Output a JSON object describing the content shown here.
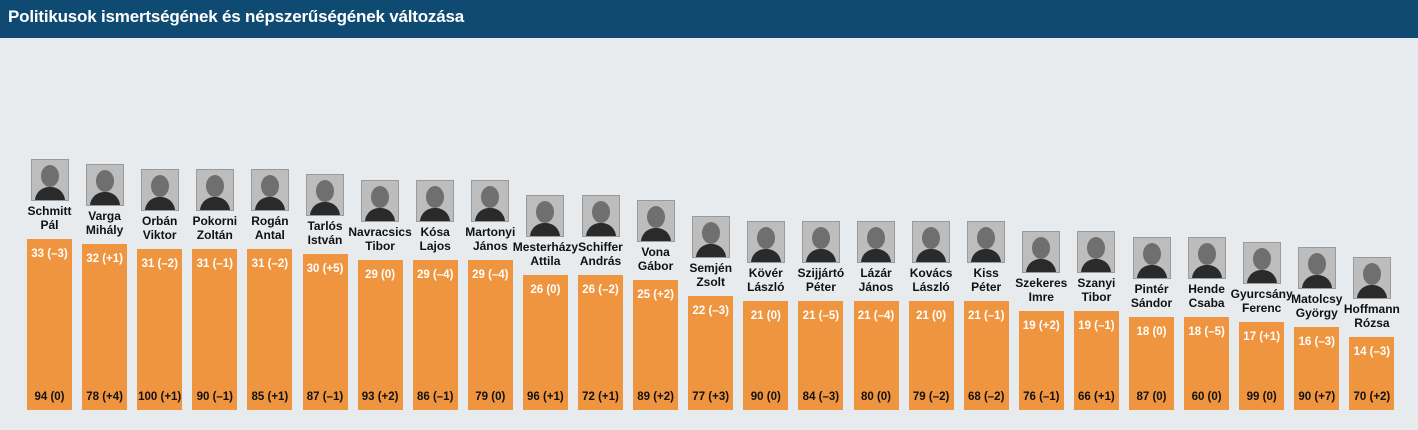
{
  "header": {
    "title": "Politikusok ismertségének és népszerűségének változása"
  },
  "chart_data": {
    "type": "bar",
    "title": "Politikusok ismertségének és népszerűségének változása",
    "xlabel": "",
    "ylabel": "",
    "ylim": [
      0,
      40
    ],
    "categories": [
      "Schmitt Pál",
      "Varga Mihály",
      "Orbán Viktor",
      "Pokorni Zoltán",
      "Rogán Antal",
      "Tarlós István",
      "Navracsics Tibor",
      "Kósa Lajos",
      "Martonyi János",
      "Mesterházy Attila",
      "Schiffer András",
      "Vona Gábor",
      "Semjén Zsolt",
      "Kövér László",
      "Szijjártó Péter",
      "Lázár János",
      "Kovács László",
      "Kiss Péter",
      "Szekeres Imre",
      "Szanyi Tibor",
      "Pintér Sándor",
      "Hende Csaba",
      "Gyurcsány Ferenc",
      "Matolcsy György",
      "Hoffmann Rózsa"
    ],
    "name_lines": [
      [
        "Schmitt",
        "Pál"
      ],
      [
        "Varga",
        "Mihály"
      ],
      [
        "Orbán",
        "Viktor"
      ],
      [
        "Pokorni",
        "Zoltán"
      ],
      [
        "Rogán",
        "Antal"
      ],
      [
        "Tarlós",
        "István"
      ],
      [
        "Navracsics",
        "Tibor"
      ],
      [
        "Kósa",
        "Lajos"
      ],
      [
        "Martonyi",
        "János"
      ],
      [
        "Mesterházy",
        "Attila"
      ],
      [
        "Schiffer",
        "András"
      ],
      [
        "Vona",
        "Gábor"
      ],
      [
        "Semjén",
        "Zsolt"
      ],
      [
        "Kövér",
        "László"
      ],
      [
        "Szijjártó",
        "Péter"
      ],
      [
        "Lázár",
        "János"
      ],
      [
        "Kovács",
        "László"
      ],
      [
        "Kiss",
        "Péter"
      ],
      [
        "Szekeres",
        "Imre"
      ],
      [
        "Szanyi",
        "Tibor"
      ],
      [
        "Pintér",
        "Sándor"
      ],
      [
        "Hende",
        "Csaba"
      ],
      [
        "Gyurcsány",
        "Ferenc"
      ],
      [
        "Matolcsy",
        "György"
      ],
      [
        "Hoffmann",
        "Rózsa"
      ]
    ],
    "series": [
      {
        "values": [
          33,
          32,
          31,
          31,
          31,
          30,
          29,
          29,
          29,
          26,
          26,
          25,
          22,
          21,
          21,
          21,
          21,
          21,
          19,
          19,
          18,
          18,
          17,
          16,
          14
        ],
        "labels": [
          "33 (–3)",
          "32 (+1)",
          "31 (–2)",
          "31 (–1)",
          "31 (–2)",
          "30 (+5)",
          "29 (0)",
          "29 (–4)",
          "29 (–4)",
          "26 (0)",
          "26 (–2)",
          "25 (+2)",
          "22 (–3)",
          "21 (0)",
          "21 (–5)",
          "21 (–4)",
          "21 (0)",
          "21 (–1)",
          "19 (+2)",
          "19 (–1)",
          "18 (0)",
          "18 (–5)",
          "17 (+1)",
          "16 (–3)",
          "14 (–3)"
        ]
      },
      {
        "values": [
          94,
          78,
          100,
          90,
          85,
          87,
          93,
          86,
          79,
          96,
          72,
          89,
          77,
          90,
          84,
          80,
          79,
          68,
          76,
          66,
          87,
          60,
          99,
          90,
          70
        ],
        "labels": [
          "94 (0)",
          "78 (+4)",
          "100 (+1)",
          "90 (–1)",
          "85 (+1)",
          "87 (–1)",
          "93 (+2)",
          "86 (–1)",
          "79 (0)",
          "96 (+1)",
          "72 (+1)",
          "89 (+2)",
          "77 (+3)",
          "90 (0)",
          "84 (–3)",
          "80 (0)",
          "79 (–2)",
          "68 (–2)",
          "76 (–1)",
          "66 (+1)",
          "87 (0)",
          "60 (0)",
          "99 (0)",
          "90 (+7)",
          "70 (+2)"
        ]
      }
    ],
    "colors": {
      "bar": "#f0953f",
      "header": "#0f4a73",
      "background": "#e7ebee"
    }
  }
}
